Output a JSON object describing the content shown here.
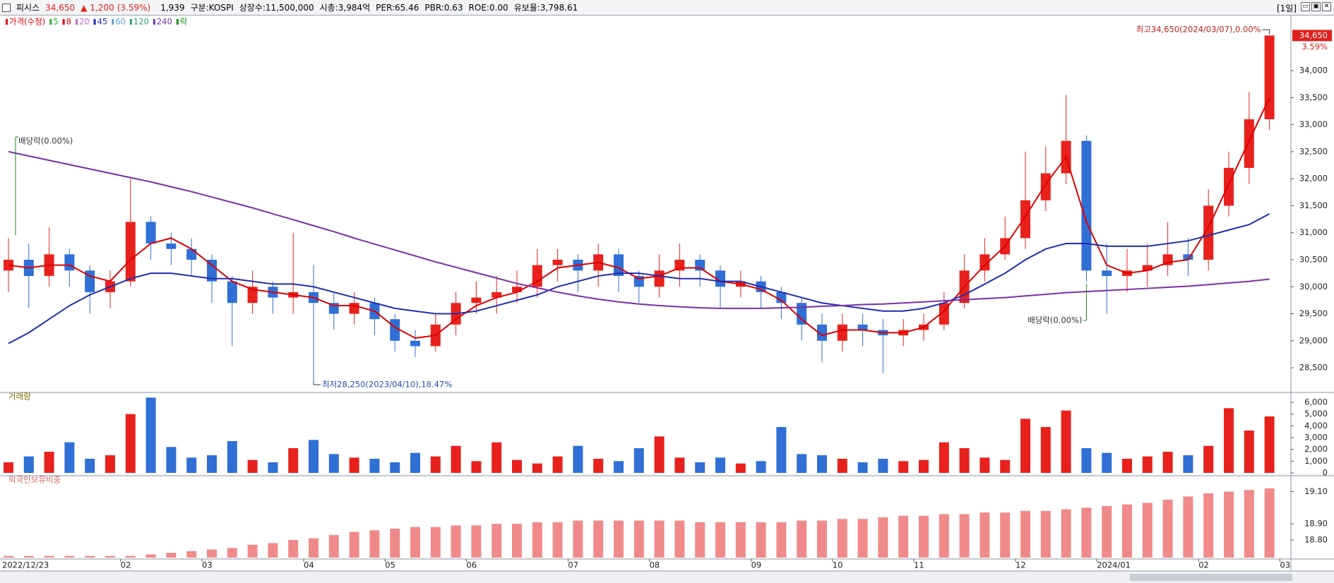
{
  "header": {
    "name": "피시스",
    "price": "34,650",
    "arrow": "▲",
    "change": "1,200",
    "change_pct": "(3.59%)",
    "volume": "1,939",
    "market": "구분:KOSPI",
    "listed": "상장수:11,500,000",
    "cap": "시총:3,984억",
    "per": "PER:65.46",
    "pbr": "PBR:0.63",
    "roe": "ROE:0.00",
    "reserve": "유보율:3,798.61",
    "period": "[1일]"
  },
  "chart_data": [
    {
      "type": "candlestick",
      "legend_price": "가격(수정)",
      "legend_price_color": "#dd0000",
      "legend_ex": "락",
      "legend_ex_color": "#1a8a1a",
      "up_color": "#e8211d",
      "down_color": "#2f6fd6",
      "open": [
        30300,
        30500,
        30200,
        30600,
        30300,
        29900,
        30100,
        31200,
        30800,
        30700,
        30500,
        30100,
        29700,
        30000,
        29800,
        29900,
        29700,
        29500,
        29700,
        29400,
        29000,
        28900,
        29300,
        29700,
        29800,
        29900,
        30000,
        30400,
        30500,
        30300,
        30600,
        30200,
        30000,
        30300,
        30500,
        30300,
        30000,
        30100,
        29900,
        29700,
        29300,
        29000,
        29300,
        29200,
        29100,
        29200,
        29300,
        29700,
        30300,
        30600,
        30900,
        31600,
        32100,
        32700,
        30300,
        30200,
        30300,
        30400,
        30600,
        30500,
        31500,
        32200,
        33100
      ],
      "high": [
        30900,
        30800,
        31100,
        30700,
        30400,
        30300,
        32000,
        31300,
        31000,
        30900,
        30600,
        30200,
        30300,
        30100,
        31000,
        30400,
        29900,
        29900,
        29800,
        29500,
        29200,
        29500,
        29900,
        30100,
        30200,
        30300,
        30700,
        30700,
        30600,
        30800,
        30700,
        30300,
        30600,
        30800,
        30600,
        30400,
        30300,
        30200,
        30000,
        29800,
        29500,
        29500,
        29500,
        29400,
        29400,
        29500,
        29900,
        30600,
        30900,
        31300,
        32500,
        32600,
        33550,
        32800,
        30800,
        30700,
        30800,
        31200,
        30900,
        31800,
        32500,
        33600,
        34650
      ],
      "low": [
        29900,
        29600,
        30000,
        30000,
        29500,
        29600,
        30000,
        30500,
        30400,
        30200,
        29700,
        28900,
        29500,
        29500,
        29500,
        28250,
        29200,
        29300,
        29100,
        28800,
        28700,
        28800,
        29100,
        29500,
        29500,
        29700,
        29800,
        30100,
        29900,
        30000,
        29900,
        29700,
        29800,
        30000,
        30000,
        29600,
        29800,
        29600,
        29400,
        29000,
        28600,
        28800,
        28900,
        28400,
        28900,
        29000,
        29200,
        29600,
        30100,
        30500,
        30700,
        31400,
        31900,
        30100,
        29500,
        29900,
        30000,
        30200,
        30200,
        30300,
        31300,
        31900,
        32900
      ],
      "close": [
        30500,
        30200,
        30600,
        30300,
        29900,
        30100,
        31200,
        30800,
        30700,
        30500,
        30100,
        29700,
        30000,
        29800,
        29900,
        29700,
        29500,
        29700,
        29400,
        29000,
        28900,
        29300,
        29700,
        29800,
        29900,
        30000,
        30400,
        30500,
        30300,
        30600,
        30200,
        30000,
        30300,
        30500,
        30300,
        30000,
        30100,
        29900,
        29700,
        29300,
        29000,
        29300,
        29200,
        29100,
        29200,
        29300,
        29700,
        30300,
        30600,
        30900,
        31600,
        32100,
        32700,
        30300,
        30200,
        30300,
        30400,
        30600,
        30500,
        31500,
        32200,
        33100,
        34650
      ],
      "moving_averages": [
        {
          "name": "5",
          "color": "#33aa33"
        },
        {
          "name": "8",
          "color": "#dd0000",
          "values": [
            30400,
            30350,
            30400,
            30400,
            30200,
            30100,
            30500,
            30800,
            30900,
            30700,
            30400,
            30100,
            29950,
            29900,
            29850,
            29800,
            29650,
            29650,
            29550,
            29250,
            29050,
            29100,
            29400,
            29650,
            29800,
            29900,
            30100,
            30350,
            30400,
            30450,
            30350,
            30150,
            30200,
            30350,
            30350,
            30100,
            30050,
            29950,
            29750,
            29400,
            29100,
            29200,
            29200,
            29150,
            29150,
            29250,
            29550,
            30000,
            30400,
            30750,
            31300,
            31900,
            32400,
            31200,
            30400,
            30250,
            30300,
            30450,
            30500,
            31100,
            31900,
            32700,
            33500
          ]
        },
        {
          "name": "20",
          "color": "#cc66cc"
        },
        {
          "name": "45",
          "color": "#1f2fb0",
          "values": [
            28950,
            29150,
            29400,
            29650,
            29850,
            30000,
            30150,
            30250,
            30250,
            30200,
            30150,
            30150,
            30100,
            30050,
            30050,
            30000,
            29900,
            29800,
            29700,
            29600,
            29550,
            29500,
            29500,
            29550,
            29650,
            29750,
            29850,
            30000,
            30100,
            30200,
            30250,
            30250,
            30200,
            30150,
            30150,
            30100,
            30100,
            30000,
            29900,
            29800,
            29700,
            29650,
            29600,
            29550,
            29550,
            29600,
            29700,
            29850,
            30050,
            30250,
            30500,
            30700,
            30800,
            30800,
            30750,
            30750,
            30750,
            30800,
            30850,
            30950,
            31050,
            31150,
            31350
          ]
        },
        {
          "name": "60",
          "color": "#5b9bd5"
        },
        {
          "name": "120",
          "color": "#2e9a7a"
        },
        {
          "name": "240",
          "color": "#7b2fa8",
          "values": [
            32500,
            32420,
            32340,
            32260,
            32180,
            32100,
            32020,
            31940,
            31850,
            31760,
            31660,
            31560,
            31460,
            31350,
            31240,
            31130,
            31020,
            30900,
            30790,
            30680,
            30570,
            30460,
            30360,
            30260,
            30160,
            30060,
            29980,
            29900,
            29830,
            29770,
            29720,
            29680,
            29650,
            29630,
            29610,
            29600,
            29600,
            29600,
            29610,
            29620,
            29640,
            29650,
            29670,
            29680,
            29700,
            29720,
            29740,
            29760,
            29780,
            29800,
            29830,
            29860,
            29890,
            29910,
            29930,
            29950,
            29970,
            29990,
            30010,
            30040,
            30070,
            30100,
            30140
          ]
        }
      ],
      "ylim": [
        28070,
        35020
      ],
      "yticks": [
        {
          "value": 28500,
          "label": "28,500"
        },
        {
          "value": 29000,
          "label": "29,000"
        },
        {
          "value": 29500,
          "label": "29,500"
        },
        {
          "value": 30000,
          "label": "30,000"
        },
        {
          "value": 30500,
          "label": "30,500"
        },
        {
          "value": 31000,
          "label": "31,000"
        },
        {
          "value": 31500,
          "label": "31,500"
        },
        {
          "value": 32000,
          "label": "32,000"
        },
        {
          "value": 32500,
          "label": "32,500"
        },
        {
          "value": 33000,
          "label": "33,000"
        },
        {
          "value": 33500,
          "label": "33,500"
        },
        {
          "value": 34000,
          "label": "34,000"
        }
      ],
      "price_tag": {
        "value": 34650,
        "label": "34,650",
        "change": "3.59%"
      },
      "annotations": {
        "dividend_1": "배당락(0.00%)",
        "dividend_2": "배당락(0.00%)",
        "high": "최고34,650(2024/03/07),0.00%",
        "low": "최저28,250(2023/04/10),18.47%"
      }
    },
    {
      "type": "bar",
      "title": "거래량",
      "values": [
        900,
        1400,
        1800,
        2600,
        1200,
        1500,
        5000,
        6400,
        2200,
        1300,
        1500,
        2700,
        1100,
        900,
        2100,
        2800,
        1600,
        1300,
        1200,
        900,
        1700,
        1400,
        2300,
        1000,
        2600,
        1100,
        800,
        1400,
        2300,
        1200,
        1000,
        2100,
        3100,
        1300,
        900,
        1300,
        800,
        1000,
        3900,
        1600,
        1500,
        1200,
        900,
        1200,
        1000,
        1100,
        2600,
        2100,
        1300,
        1100,
        4600,
        3900,
        5300,
        2100,
        1700,
        1200,
        1400,
        1800,
        1500,
        2300,
        5500,
        3600,
        4800
      ],
      "ylim": [
        0,
        6600
      ],
      "yticks": [
        0,
        {
          "value": 1000,
          "label": "1,000"
        },
        {
          "value": 2000,
          "label": "2,000"
        },
        {
          "value": 3000,
          "label": "3,000"
        },
        {
          "value": 4000,
          "label": "4,000"
        },
        {
          "value": 5000,
          "label": "5,000"
        },
        {
          "value": 6000,
          "label": "6,000"
        }
      ]
    },
    {
      "type": "bar",
      "title": "외국인보유비중",
      "color": "#f08a8a",
      "values": [
        18.7,
        18.7,
        18.7,
        18.7,
        18.7,
        18.7,
        18.7,
        18.71,
        18.72,
        18.73,
        18.74,
        18.75,
        18.77,
        18.78,
        18.8,
        18.81,
        18.83,
        18.85,
        18.86,
        18.87,
        18.88,
        18.88,
        18.89,
        18.89,
        18.9,
        18.9,
        18.91,
        18.91,
        18.92,
        18.92,
        18.92,
        18.92,
        18.92,
        18.92,
        18.91,
        18.91,
        18.91,
        18.91,
        18.91,
        18.92,
        18.92,
        18.93,
        18.93,
        18.94,
        18.95,
        18.95,
        18.96,
        18.96,
        18.97,
        18.97,
        18.98,
        18.98,
        18.99,
        19.0,
        19.01,
        19.02,
        19.03,
        19.05,
        19.07,
        19.09,
        19.1,
        19.11,
        19.12
      ],
      "ylim": [
        18.69,
        19.19
      ],
      "yticks": [
        {
          "value": 18.8,
          "label": "18.80"
        },
        {
          "value": 18.9,
          "label": "18.90"
        },
        {
          "value": 19.1,
          "label": "19.10"
        }
      ],
      "xticks": [
        {
          "value": 0,
          "label": "2022/12/23"
        },
        {
          "value": 6,
          "label": "02"
        },
        {
          "value": 10,
          "label": "03"
        },
        {
          "value": 15,
          "label": "04"
        },
        {
          "value": 19,
          "label": "05"
        },
        {
          "value": 23,
          "label": "06"
        },
        {
          "value": 28,
          "label": "07"
        },
        {
          "value": 32,
          "label": "08"
        },
        {
          "value": 37,
          "label": "09"
        },
        {
          "value": 41,
          "label": "10"
        },
        {
          "value": 45,
          "label": "11"
        },
        {
          "value": 50,
          "label": "12"
        },
        {
          "value": 54,
          "label": "2024/01"
        },
        {
          "value": 59,
          "label": "02"
        },
        {
          "value": 63,
          "label": "03"
        }
      ]
    }
  ]
}
